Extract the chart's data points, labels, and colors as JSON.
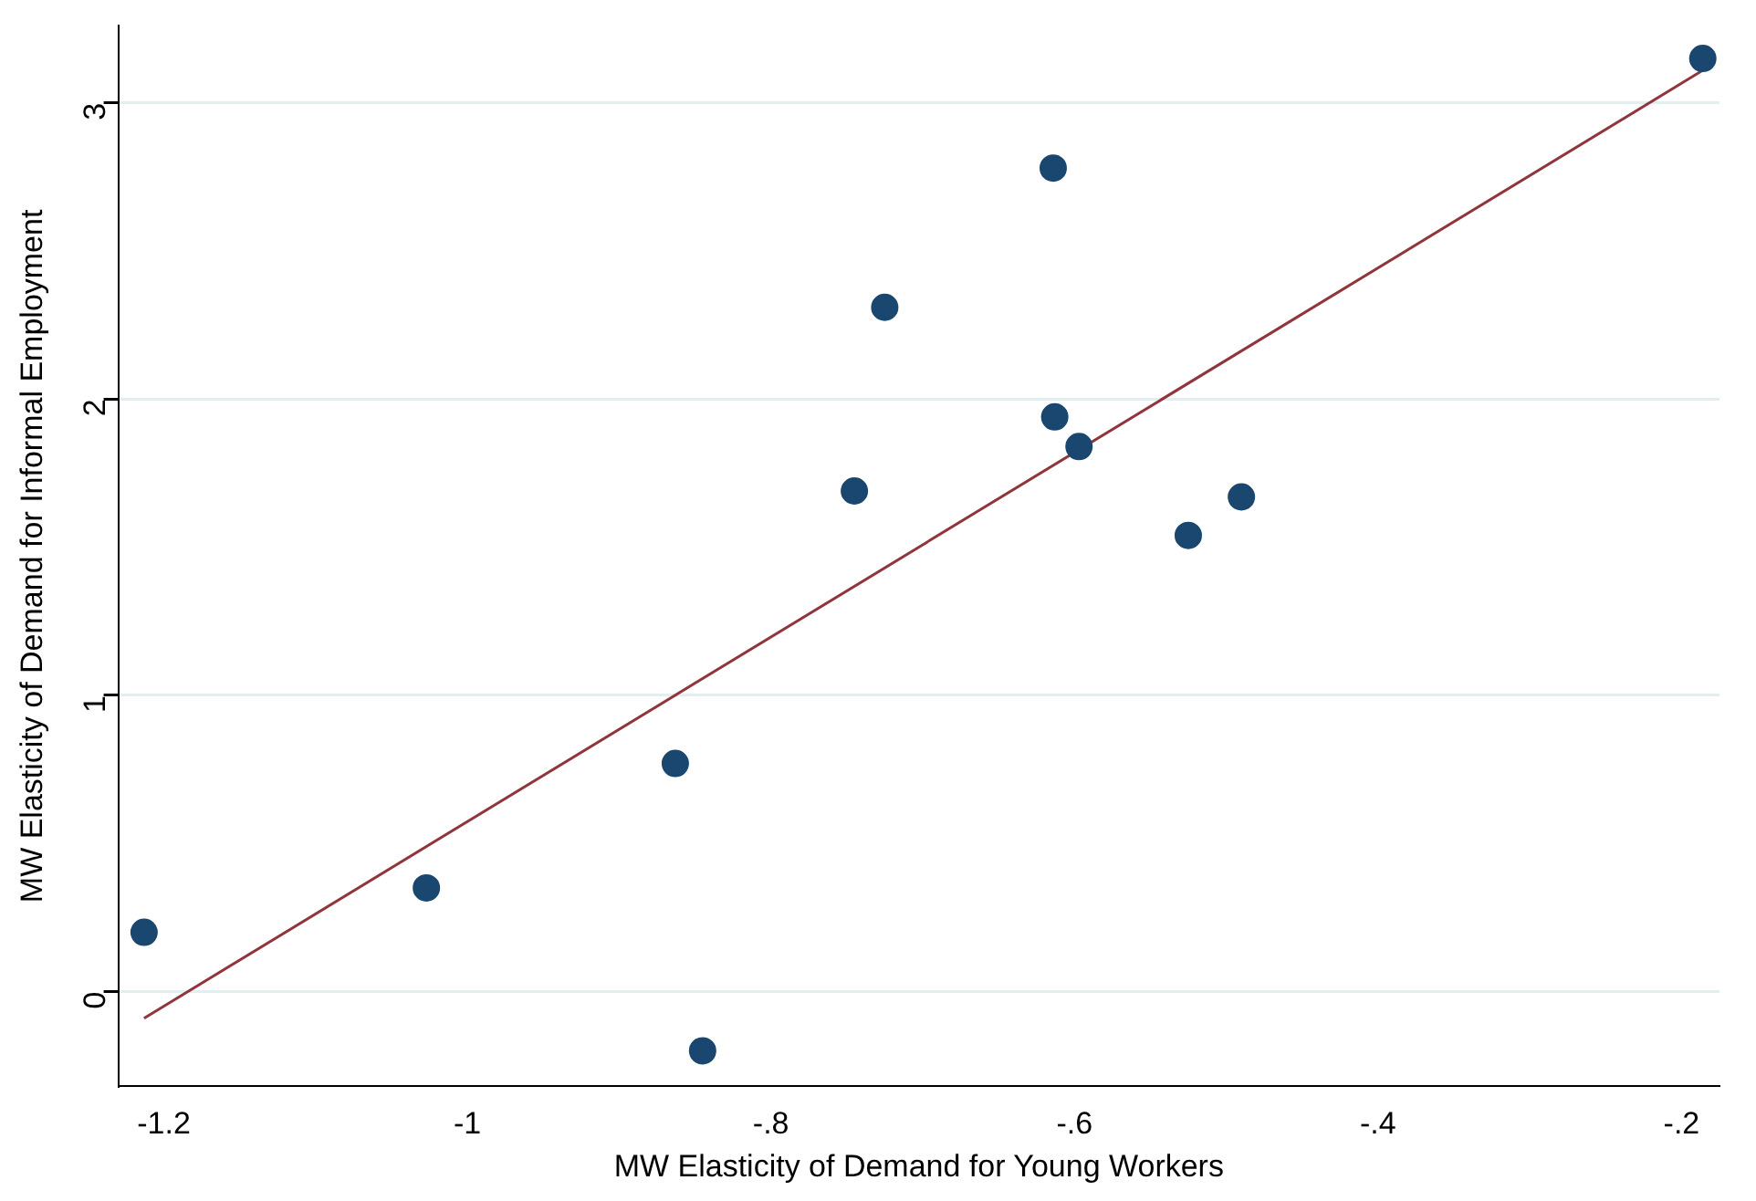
{
  "chart_data": {
    "type": "scatter",
    "xlabel": "MW Elasticity of Demand for Young Workers",
    "ylabel": "MW Elasticity of Demand for Informal Employment",
    "xlim": [
      -1.23,
      -0.175
    ],
    "ylim": [
      -0.32,
      3.26
    ],
    "xticks": [
      -1.2,
      {
        "value": -1,
        "label": "-1"
      },
      {
        "value": -0.8,
        "label": "-.8"
      },
      {
        "value": -0.6,
        "label": "-.6"
      },
      {
        "value": -0.4,
        "label": "-.4"
      },
      {
        "value": -0.2,
        "label": "-.2"
      }
    ],
    "yticks": [
      0,
      1,
      2,
      3
    ],
    "grid": "y",
    "legend": false,
    "series": [
      {
        "marker": "circle",
        "color": "#1a476f",
        "x": [
          -1.213,
          -1.027,
          -0.863,
          -0.845,
          -0.745,
          -0.725,
          -0.614,
          -0.613,
          -0.597,
          -0.525,
          -0.49,
          -0.186
        ],
        "values": [
          0.2,
          0.35,
          0.77,
          -0.2,
          1.69,
          2.31,
          2.78,
          1.94,
          1.84,
          1.54,
          1.67,
          3.15
        ]
      },
      {
        "type": "line",
        "marker": "none",
        "color": "#90353b",
        "x": [
          -1.213,
          -0.186
        ],
        "values": [
          -0.09,
          3.11
        ]
      }
    ]
  }
}
